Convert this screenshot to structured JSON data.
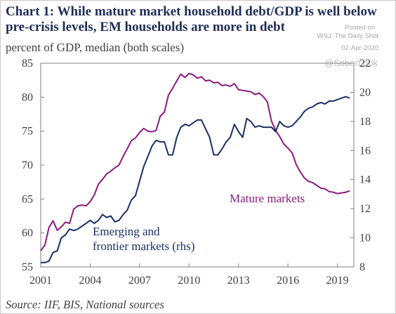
{
  "header": {
    "title": "Chart 1:  While mature market household debt/GDP is well below pre-crisis levels, EM households are more in debt",
    "watermark_label": "Posted on",
    "watermark_source": "WSJ: The Daily Shot",
    "watermark_date": "02-Apr-2020",
    "watermark_handle": "@SoberLook"
  },
  "footer": {
    "source": "Source: IIF, BIS, National sources"
  },
  "chart_data": {
    "type": "line",
    "title": "Chart 1:  While mature market household debt/GDP is well below pre-crisis levels, EM households are more in debt",
    "ylabel": "percent of GDP, median (both scales)",
    "x_ticks": [
      "2001",
      "2004",
      "2007",
      "2010",
      "2013",
      "2016",
      "2019"
    ],
    "x_range": [
      2001.0,
      2020.0
    ],
    "y_left": {
      "range": [
        55,
        85
      ],
      "ticks": [
        "55",
        "60",
        "65",
        "70",
        "75",
        "80",
        "85"
      ]
    },
    "y_right": {
      "range": [
        8,
        22
      ],
      "ticks": [
        "8",
        "10",
        "12",
        "14",
        "16",
        "18",
        "20",
        "22"
      ]
    },
    "grid": false,
    "series": [
      {
        "name": "Mature markets",
        "axis": "left",
        "color": "#8b1a7e",
        "x": [
          2001.0,
          2001.25,
          2001.5,
          2001.75,
          2002.0,
          2002.25,
          2002.5,
          2002.75,
          2003.0,
          2003.25,
          2003.5,
          2003.75,
          2004.0,
          2004.25,
          2004.5,
          2004.75,
          2005.0,
          2005.25,
          2005.5,
          2005.75,
          2006.0,
          2006.25,
          2006.5,
          2006.75,
          2007.0,
          2007.25,
          2007.5,
          2007.75,
          2008.0,
          2008.25,
          2008.5,
          2008.75,
          2009.0,
          2009.25,
          2009.5,
          2009.75,
          2010.0,
          2010.25,
          2010.5,
          2010.75,
          2011.0,
          2011.25,
          2011.5,
          2011.75,
          2012.0,
          2012.25,
          2012.5,
          2012.75,
          2013.0,
          2013.25,
          2013.5,
          2013.75,
          2014.0,
          2014.25,
          2014.5,
          2014.75,
          2015.0,
          2015.25,
          2015.5,
          2015.75,
          2016.0,
          2016.25,
          2016.5,
          2016.75,
          2017.0,
          2017.25,
          2017.5,
          2017.75,
          2018.0,
          2018.25,
          2018.5,
          2018.75,
          2019.0,
          2019.25,
          2019.5,
          2019.75
        ],
        "values": [
          57.4,
          58.2,
          60.8,
          61.8,
          60.4,
          60.9,
          61.6,
          61.4,
          63.5,
          64.0,
          64.1,
          64.0,
          64.6,
          65.6,
          67.2,
          67.9,
          68.7,
          69.1,
          69.6,
          70.0,
          71.3,
          72.4,
          73.6,
          74.0,
          74.8,
          75.4,
          75.0,
          74.9,
          75.1,
          77.2,
          77.8,
          80.3,
          81.3,
          82.4,
          83.4,
          82.9,
          83.5,
          83.3,
          82.8,
          83.0,
          82.4,
          82.5,
          82.1,
          82.2,
          81.7,
          81.8,
          81.6,
          82.0,
          81.1,
          81.0,
          80.9,
          80.8,
          80.4,
          80.6,
          80.1,
          79.3,
          76.5,
          75.1,
          74.2,
          73.1,
          72.5,
          71.8,
          70.1,
          69.0,
          68.1,
          67.6,
          67.4,
          67.0,
          66.6,
          66.5,
          66.1,
          66.0,
          65.8,
          65.9,
          66.0,
          66.2
        ]
      },
      {
        "name": "Emerging and frontier markets (rhs)",
        "axis": "right",
        "color": "#1b2f63",
        "x": [
          2001.0,
          2001.25,
          2001.5,
          2001.75,
          2002.0,
          2002.25,
          2002.5,
          2002.75,
          2003.0,
          2003.25,
          2003.5,
          2003.75,
          2004.0,
          2004.25,
          2004.5,
          2004.75,
          2005.0,
          2005.25,
          2005.5,
          2005.75,
          2006.0,
          2006.25,
          2006.5,
          2006.75,
          2007.0,
          2007.25,
          2007.5,
          2007.75,
          2008.0,
          2008.25,
          2008.5,
          2008.75,
          2009.0,
          2009.25,
          2009.5,
          2009.75,
          2010.0,
          2010.25,
          2010.5,
          2010.75,
          2011.0,
          2011.25,
          2011.5,
          2011.75,
          2012.0,
          2012.25,
          2012.5,
          2012.75,
          2013.0,
          2013.25,
          2013.5,
          2013.75,
          2014.0,
          2014.25,
          2014.5,
          2014.75,
          2015.0,
          2015.25,
          2015.5,
          2015.75,
          2016.0,
          2016.25,
          2016.5,
          2016.75,
          2017.0,
          2017.25,
          2017.5,
          2017.75,
          2018.0,
          2018.25,
          2018.5,
          2018.75,
          2019.0,
          2019.25,
          2019.5,
          2019.75
        ],
        "values": [
          8.3,
          8.3,
          8.4,
          9.0,
          9.1,
          10.0,
          10.2,
          10.6,
          10.5,
          10.6,
          10.8,
          11.0,
          11.2,
          11.0,
          11.2,
          11.6,
          11.4,
          11.5,
          11.1,
          11.2,
          11.6,
          11.9,
          12.6,
          12.9,
          13.9,
          14.9,
          15.6,
          16.3,
          16.7,
          16.6,
          16.6,
          15.7,
          15.7,
          16.9,
          17.6,
          17.8,
          17.7,
          17.9,
          18.1,
          18.1,
          17.5,
          16.9,
          15.7,
          15.7,
          16.1,
          16.6,
          16.9,
          17.8,
          17.3,
          16.9,
          18.2,
          18.0,
          17.6,
          17.7,
          17.6,
          17.6,
          17.6,
          17.3,
          18.0,
          17.7,
          17.6,
          17.7,
          18.0,
          18.3,
          18.7,
          18.9,
          19.0,
          19.2,
          19.3,
          19.2,
          19.4,
          19.4,
          19.5,
          19.6,
          19.7,
          19.6
        ]
      }
    ],
    "annotations": [
      {
        "text": "Mature markets",
        "series": "Mature markets"
      },
      {
        "text": "Emerging and",
        "series": "Emerging and frontier markets (rhs)"
      },
      {
        "text": "frontier markets (rhs)",
        "series": "Emerging and frontier markets (rhs)"
      }
    ]
  }
}
